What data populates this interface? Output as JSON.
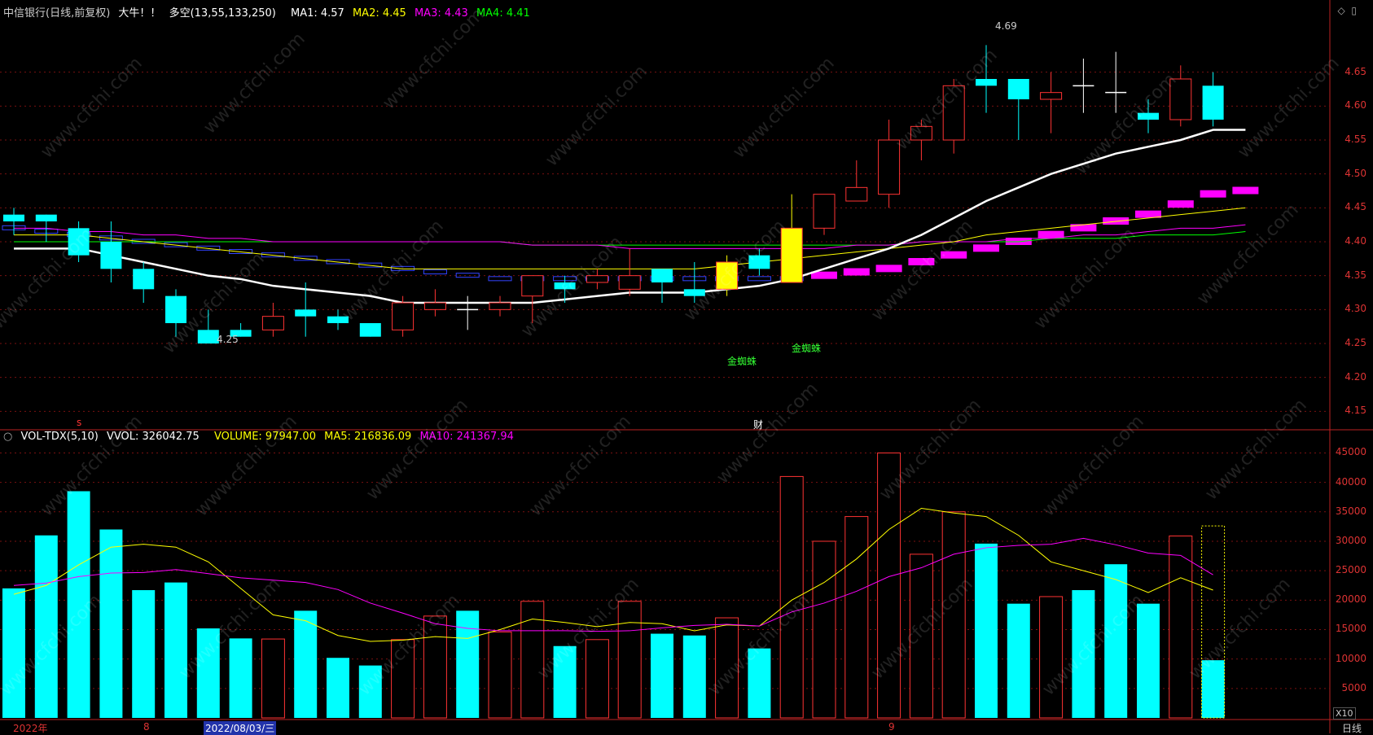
{
  "header": {
    "stock": "中信银行(日线,前复权)",
    "signal1": "大牛！！",
    "signal2": "多空(13,55,133,250)",
    "ma1": "MA1: 4.57",
    "ma2": "MA2: 4.45",
    "ma3": "MA3: 4.43",
    "ma4": "MA4: 4.41"
  },
  "vol_header": {
    "name": "VOL-TDX(5,10)",
    "vvol": "VVOL: 326042.75",
    "volume": "VOLUME: 97947.00",
    "ma5": "MA5: 216836.09",
    "ma10": "MA10: 241367.94"
  },
  "annotations": {
    "high": "4.69",
    "low": "4.25",
    "jzz1": "金蜘蛛",
    "jzz2": "金蜘蛛",
    "cai": "财",
    "s": "s"
  },
  "xaxis": {
    "year": "2022年",
    "m8": "8",
    "date": "2022/08/03/三",
    "m9": "9",
    "x10": "X10",
    "period": "日线"
  },
  "watermark": "www.cfchi.com",
  "colors": {
    "up": "#ff3333",
    "down": "#00ffff",
    "ma_white": "#ffffff",
    "ma_yellow": "#ffff00",
    "ma_magenta": "#ff00ff",
    "ma_green": "#00ff00"
  },
  "chart_data": {
    "type": "candlestick",
    "price_ticks": [
      4.15,
      4.2,
      4.25,
      4.3,
      4.35,
      4.4,
      4.45,
      4.5,
      4.55,
      4.6,
      4.65
    ],
    "price_range": [
      4.13,
      4.73
    ],
    "volume_ticks": [
      5000,
      10000,
      15000,
      20000,
      25000,
      30000,
      35000,
      40000,
      45000
    ],
    "volume_range": [
      0,
      47000
    ],
    "candles": [
      {
        "o": 4.44,
        "c": 4.43,
        "h": 4.45,
        "l": 4.41
      },
      {
        "o": 4.44,
        "c": 4.43,
        "h": 4.44,
        "l": 4.4
      },
      {
        "o": 4.42,
        "c": 4.38,
        "h": 4.43,
        "l": 4.37
      },
      {
        "o": 4.4,
        "c": 4.36,
        "h": 4.43,
        "l": 4.34
      },
      {
        "o": 4.36,
        "c": 4.33,
        "h": 4.37,
        "l": 4.31
      },
      {
        "o": 4.32,
        "c": 4.28,
        "h": 4.33,
        "l": 4.26
      },
      {
        "o": 4.27,
        "c": 4.25,
        "h": 4.3,
        "l": 4.25
      },
      {
        "o": 4.27,
        "c": 4.26,
        "h": 4.28,
        "l": 4.26
      },
      {
        "o": 4.27,
        "c": 4.29,
        "h": 4.31,
        "l": 4.26
      },
      {
        "o": 4.3,
        "c": 4.29,
        "h": 4.34,
        "l": 4.26
      },
      {
        "o": 4.29,
        "c": 4.28,
        "h": 4.3,
        "l": 4.27
      },
      {
        "o": 4.28,
        "c": 4.26,
        "h": 4.28,
        "l": 4.26
      },
      {
        "o": 4.27,
        "c": 4.31,
        "h": 4.32,
        "l": 4.26
      },
      {
        "o": 4.3,
        "c": 4.31,
        "h": 4.33,
        "l": 4.29
      },
      {
        "o": 4.3,
        "c": 4.3,
        "h": 4.32,
        "l": 4.27
      },
      {
        "o": 4.3,
        "c": 4.31,
        "h": 4.32,
        "l": 4.29
      },
      {
        "o": 4.32,
        "c": 4.35,
        "h": 4.35,
        "l": 4.28
      },
      {
        "o": 4.34,
        "c": 4.33,
        "h": 4.35,
        "l": 4.31
      },
      {
        "o": 4.34,
        "c": 4.35,
        "h": 4.36,
        "l": 4.33
      },
      {
        "o": 4.33,
        "c": 4.35,
        "h": 4.39,
        "l": 4.32
      },
      {
        "o": 4.36,
        "c": 4.34,
        "h": 4.36,
        "l": 4.31
      },
      {
        "o": 4.33,
        "c": 4.32,
        "h": 4.37,
        "l": 4.31
      },
      {
        "o": 4.33,
        "c": 4.37,
        "h": 4.38,
        "l": 4.32
      },
      {
        "o": 4.38,
        "c": 4.36,
        "h": 4.39,
        "l": 4.35
      },
      {
        "o": 4.34,
        "c": 4.42,
        "h": 4.47,
        "l": 4.34
      },
      {
        "o": 4.42,
        "c": 4.47,
        "h": 4.47,
        "l": 4.41
      },
      {
        "o": 4.46,
        "c": 4.48,
        "h": 4.52,
        "l": 4.46
      },
      {
        "o": 4.47,
        "c": 4.55,
        "h": 4.58,
        "l": 4.45
      },
      {
        "o": 4.55,
        "c": 4.57,
        "h": 4.58,
        "l": 4.52
      },
      {
        "o": 4.55,
        "c": 4.63,
        "h": 4.64,
        "l": 4.53
      },
      {
        "o": 4.64,
        "c": 4.63,
        "h": 4.69,
        "l": 4.59
      },
      {
        "o": 4.64,
        "c": 4.61,
        "h": 4.64,
        "l": 4.55
      },
      {
        "o": 4.61,
        "c": 4.62,
        "h": 4.65,
        "l": 4.56
      },
      {
        "o": 4.63,
        "c": 4.63,
        "h": 4.67,
        "l": 4.59
      },
      {
        "o": 4.62,
        "c": 4.62,
        "h": 4.68,
        "l": 4.59
      },
      {
        "o": 4.59,
        "c": 4.58,
        "h": 4.61,
        "l": 4.56
      },
      {
        "o": 4.58,
        "c": 4.64,
        "h": 4.66,
        "l": 4.57
      },
      {
        "o": 4.63,
        "c": 4.58,
        "h": 4.65,
        "l": 4.57
      }
    ],
    "highlight_candles": [
      22,
      24
    ],
    "volume": [
      22000,
      31000,
      38500,
      32000,
      21700,
      23000,
      15200,
      13500,
      13400,
      18200,
      10200,
      8900,
      13300,
      17300,
      18200,
      14600,
      19800,
      12200,
      13300,
      19800,
      14300,
      14000,
      17000,
      11800,
      41000,
      30000,
      34200,
      45000,
      27800,
      35000,
      29600,
      19400,
      20600,
      21700,
      26100,
      19400,
      30900,
      9794
    ],
    "ma_white": [
      4.39,
      4.39,
      4.39,
      4.38,
      4.37,
      4.36,
      4.35,
      4.345,
      4.335,
      4.33,
      4.325,
      4.32,
      4.31,
      4.31,
      4.31,
      4.31,
      4.31,
      4.315,
      4.32,
      4.325,
      4.325,
      4.325,
      4.33,
      4.335,
      4.345,
      4.36,
      4.375,
      4.39,
      4.41,
      4.435,
      4.46,
      4.48,
      4.5,
      4.515,
      4.53,
      4.54,
      4.55,
      4.565,
      4.565
    ],
    "ma_yellow": [
      4.41,
      4.41,
      4.41,
      4.405,
      4.4,
      4.395,
      4.39,
      4.385,
      4.38,
      4.375,
      4.37,
      4.365,
      4.36,
      4.36,
      4.36,
      4.36,
      4.36,
      4.36,
      4.36,
      4.36,
      4.36,
      4.36,
      4.365,
      4.37,
      4.375,
      4.38,
      4.385,
      4.39,
      4.395,
      4.4,
      4.41,
      4.415,
      4.42,
      4.425,
      4.43,
      4.435,
      4.44,
      4.445,
      4.45
    ],
    "ma_magenta": [
      4.42,
      4.42,
      4.415,
      4.415,
      4.41,
      4.41,
      4.405,
      4.405,
      4.4,
      4.4,
      4.4,
      4.4,
      4.4,
      4.4,
      4.4,
      4.4,
      4.395,
      4.395,
      4.395,
      4.39,
      4.39,
      4.39,
      4.39,
      4.39,
      4.39,
      4.39,
      4.395,
      4.395,
      4.4,
      4.4,
      4.4,
      4.405,
      4.405,
      4.41,
      4.41,
      4.415,
      4.42,
      4.42,
      4.425
    ],
    "ma_green": [
      4.4,
      4.4,
      4.4,
      4.4,
      4.4,
      4.4,
      4.4,
      4.4,
      4.4,
      4.4,
      4.4,
      4.4,
      4.4,
      4.4,
      4.4,
      4.4,
      4.395,
      4.395,
      4.395,
      4.395,
      4.395,
      4.395,
      4.395,
      4.395,
      4.395,
      4.395,
      4.395,
      4.395,
      4.4,
      4.4,
      4.4,
      4.4,
      4.405,
      4.405,
      4.405,
      4.41,
      4.41,
      4.41,
      4.415
    ],
    "band": [
      4.42,
      4.415,
      4.41,
      4.405,
      4.4,
      4.395,
      4.39,
      4.385,
      4.38,
      4.375,
      4.37,
      4.365,
      4.36,
      4.355,
      4.35,
      4.345,
      4.345,
      4.345,
      4.345,
      4.345,
      4.345,
      4.345,
      4.345,
      4.345,
      4.345,
      4.35,
      4.355,
      4.36,
      4.37,
      4.38,
      4.39,
      4.4,
      4.41,
      4.42,
      4.43,
      4.44,
      4.455,
      4.47,
      4.475
    ],
    "band_split": 25,
    "vol_ma5": [
      21000,
      22500,
      26000,
      29000,
      29500,
      29000,
      26500,
      22000,
      17500,
      16500,
      14000,
      13000,
      13200,
      13800,
      13500,
      15000,
      16800,
      16200,
      15500,
      16200,
      16000,
      14800,
      15800,
      15600,
      20000,
      23000,
      27000,
      32000,
      35600,
      34800,
      34200,
      31000,
      26500,
      25000,
      23500,
      21300,
      23800,
      21700
    ],
    "vol_ma10": [
      22500,
      22900,
      24000,
      24600,
      24700,
      25200,
      24500,
      23800,
      23400,
      23000,
      21800,
      19500,
      17800,
      16000,
      15200,
      14800,
      14800,
      14800,
      14700,
      14800,
      15300,
      15700,
      15900,
      15600,
      18000,
      19500,
      21500,
      24000,
      25500,
      27800,
      28900,
      29300,
      29500,
      30500,
      29400,
      28000,
      27600,
      24300
    ]
  }
}
